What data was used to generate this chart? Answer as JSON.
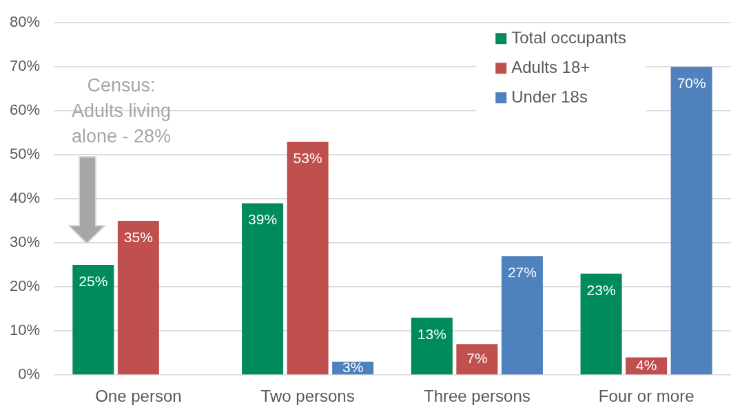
{
  "chart_data": {
    "type": "bar",
    "categories": [
      "One person",
      "Two persons",
      "Three persons",
      "Four or more"
    ],
    "series": [
      {
        "name": "Total occupants",
        "color": "#008c5a",
        "values": [
          25,
          39,
          13,
          23
        ],
        "value_labels": [
          "25%",
          "39%",
          "13%",
          "23%"
        ]
      },
      {
        "name": "Adults 18+",
        "color": "#c0504d",
        "values": [
          35,
          53,
          7,
          4
        ],
        "value_labels": [
          "35%",
          "53%",
          "7%",
          "4%"
        ]
      },
      {
        "name": "Under 18s",
        "color": "#4f81bd",
        "values": [
          null,
          3,
          27,
          70
        ],
        "value_labels": [
          null,
          "3%",
          "27%",
          "70%"
        ]
      }
    ],
    "ylim": [
      0,
      80
    ],
    "yticks": [
      {
        "value": 0,
        "label": "0%"
      },
      {
        "value": 10,
        "label": "10%"
      },
      {
        "value": 20,
        "label": "20%"
      },
      {
        "value": 30,
        "label": "30%"
      },
      {
        "value": 40,
        "label": "40%"
      },
      {
        "value": 50,
        "label": "50%"
      },
      {
        "value": 60,
        "label": "60%"
      },
      {
        "value": 70,
        "label": "70%"
      },
      {
        "value": 80,
        "label": "80%"
      }
    ],
    "grid": "y",
    "legend": "top right",
    "annotations": [
      "Census: Adults living alone - 28%"
    ]
  }
}
